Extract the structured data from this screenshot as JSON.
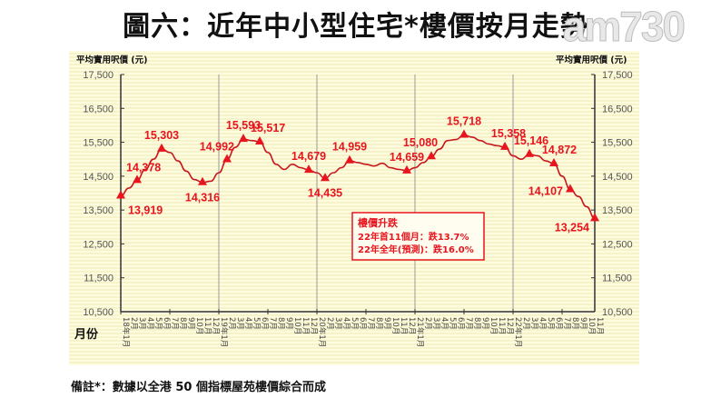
{
  "title": "圖六：近年中小型住宅*樓價按月走勢",
  "watermark": "am730",
  "left_axis_label": "平均實用呎價 (元)",
  "right_axis_label": "平均實用呎價 (元)",
  "x_axis_label": "月份",
  "footnote": "備註*：數據以全港 50 個指標屋苑樓價綜合而成",
  "annotation_box": {
    "title": "樓價升跌",
    "line1": "22年首11個月：跌13.7%",
    "line2": "22年全年(預測)：跌16.0%",
    "color": "#e8141e"
  },
  "colors": {
    "line": "#c8181e",
    "marker": "#e8141e",
    "label": "#e8141e",
    "axis": "#333333"
  },
  "chart_data": {
    "type": "line",
    "title": "圖六：近年中小型住宅*樓價按月走勢",
    "xlabel": "月份",
    "ylabel": "平均實用呎價 (元)",
    "ylim": [
      10500,
      17500
    ],
    "yticks": [
      10500,
      11500,
      12500,
      13500,
      14500,
      15500,
      16500,
      17500
    ],
    "year_labels": [
      "18年",
      "19年",
      "20年",
      "21年",
      "22年"
    ],
    "x": [
      "18-1",
      "18-2",
      "18-3",
      "18-4",
      "18-5",
      "18-6",
      "18-7",
      "18-8",
      "18-9",
      "18-10",
      "18-11",
      "18-12",
      "19-1",
      "19-2",
      "19-3",
      "19-4",
      "19-5",
      "19-6",
      "19-7",
      "19-8",
      "19-9",
      "19-10",
      "19-11",
      "19-12",
      "20-1",
      "20-2",
      "20-3",
      "20-4",
      "20-5",
      "20-6",
      "20-7",
      "20-8",
      "20-9",
      "20-10",
      "20-11",
      "20-12",
      "21-1",
      "21-2",
      "21-3",
      "21-4",
      "21-5",
      "21-6",
      "21-7",
      "21-8",
      "21-9",
      "21-10",
      "21-11",
      "21-12",
      "22-1",
      "22-2",
      "22-3",
      "22-4",
      "22-5",
      "22-6",
      "22-7",
      "22-8",
      "22-9",
      "22-10",
      "22-11"
    ],
    "series": [
      {
        "name": "平均實用呎價",
        "values": [
          13919,
          14150,
          14378,
          14700,
          15000,
          15303,
          15200,
          14950,
          14650,
          14400,
          14316,
          14350,
          14600,
          14992,
          15350,
          15593,
          15550,
          15517,
          15200,
          14850,
          14700,
          14850,
          14750,
          14679,
          14600,
          14435,
          14600,
          14750,
          14959,
          14900,
          14850,
          14800,
          14880,
          14750,
          14700,
          14659,
          14750,
          14900,
          15080,
          15300,
          15550,
          15580,
          15718,
          15650,
          15550,
          15450,
          15400,
          15358,
          15100,
          15000,
          15146,
          15100,
          14950,
          14872,
          14500,
          14107,
          13900,
          13600,
          13254
        ]
      }
    ],
    "labeled_points": [
      {
        "x": "18-1",
        "value": 13919
      },
      {
        "x": "18-3",
        "value": 14378
      },
      {
        "x": "18-6",
        "value": 15303
      },
      {
        "x": "18-11",
        "value": 14316
      },
      {
        "x": "19-2",
        "value": 14992
      },
      {
        "x": "19-4",
        "value": 15593
      },
      {
        "x": "19-6",
        "value": 15517
      },
      {
        "x": "19-12",
        "value": 14679
      },
      {
        "x": "20-2",
        "value": 14435
      },
      {
        "x": "20-5",
        "value": 14959
      },
      {
        "x": "20-12",
        "value": 14659
      },
      {
        "x": "21-3",
        "value": 15080
      },
      {
        "x": "21-7",
        "value": 15718
      },
      {
        "x": "21-12",
        "value": 15358
      },
      {
        "x": "22-3",
        "value": 15146
      },
      {
        "x": "22-6",
        "value": 14872
      },
      {
        "x": "22-8",
        "value": 14107
      },
      {
        "x": "22-11",
        "value": 13254
      }
    ],
    "grid": "vertical year dividers",
    "legend": "none"
  }
}
